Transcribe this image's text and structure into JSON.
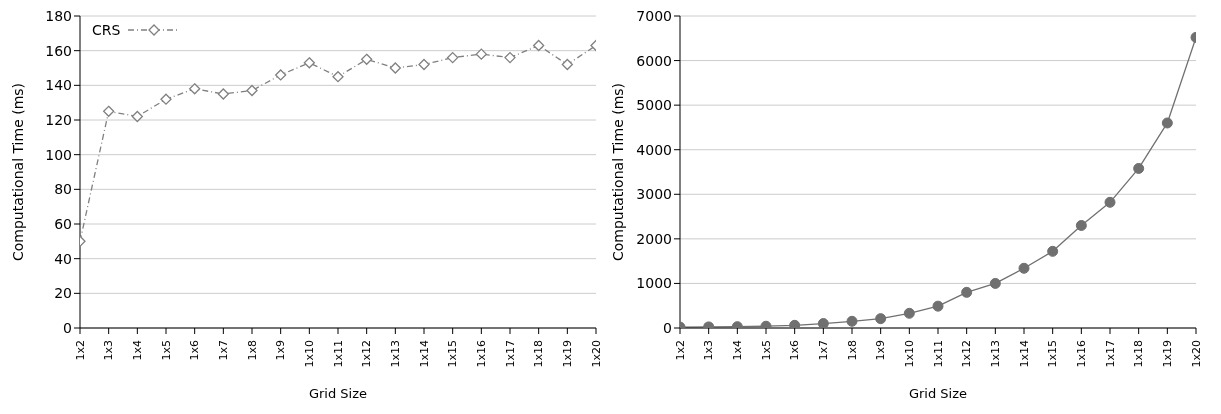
{
  "chart_data": [
    {
      "type": "line",
      "categories": [
        "1x2",
        "1x3",
        "1x4",
        "1x5",
        "1x6",
        "1x7",
        "1x8",
        "1x9",
        "1x10",
        "1x11",
        "1x12",
        "1x13",
        "1x14",
        "1x15",
        "1x16",
        "1x17",
        "1x18",
        "1x19",
        "1x20"
      ],
      "series": [
        {
          "name": "CRS",
          "color": "#808080",
          "values": [
            50,
            125,
            122,
            132,
            138,
            135,
            137,
            146,
            153,
            145,
            155,
            150,
            152,
            156,
            158,
            156,
            163,
            152,
            163
          ]
        }
      ],
      "xlabel": "Grid Size",
      "ylabel": "Computational Time (ms)",
      "ylim": [
        0,
        180
      ],
      "yticks": [
        0,
        20,
        40,
        60,
        80,
        100,
        120,
        140,
        160,
        180
      ],
      "grid": "y",
      "legend": "top left",
      "marker": "diamond",
      "line_style": "dashed"
    },
    {
      "type": "line",
      "categories": [
        "1x2",
        "1x3",
        "1x4",
        "1x5",
        "1x6",
        "1x7",
        "1x8",
        "1x9",
        "1x10",
        "1x11",
        "1x12",
        "1x13",
        "1x14",
        "1x15",
        "1x16",
        "1x17",
        "1x18",
        "1x19",
        "1x20"
      ],
      "series": [
        {
          "color": "#707070",
          "values": [
            20,
            25,
            30,
            40,
            60,
            100,
            150,
            210,
            330,
            490,
            800,
            1000,
            1340,
            1720,
            2300,
            2820,
            3580,
            4600,
            6520
          ]
        }
      ],
      "xlabel": "Grid Size",
      "ylabel": "Computational Time (ms)",
      "ylim": [
        0,
        7000
      ],
      "yticks": [
        0,
        1000,
        2000,
        3000,
        4000,
        5000,
        6000,
        7000
      ],
      "grid": "y",
      "marker": "circle",
      "line_style": "solid"
    }
  ]
}
